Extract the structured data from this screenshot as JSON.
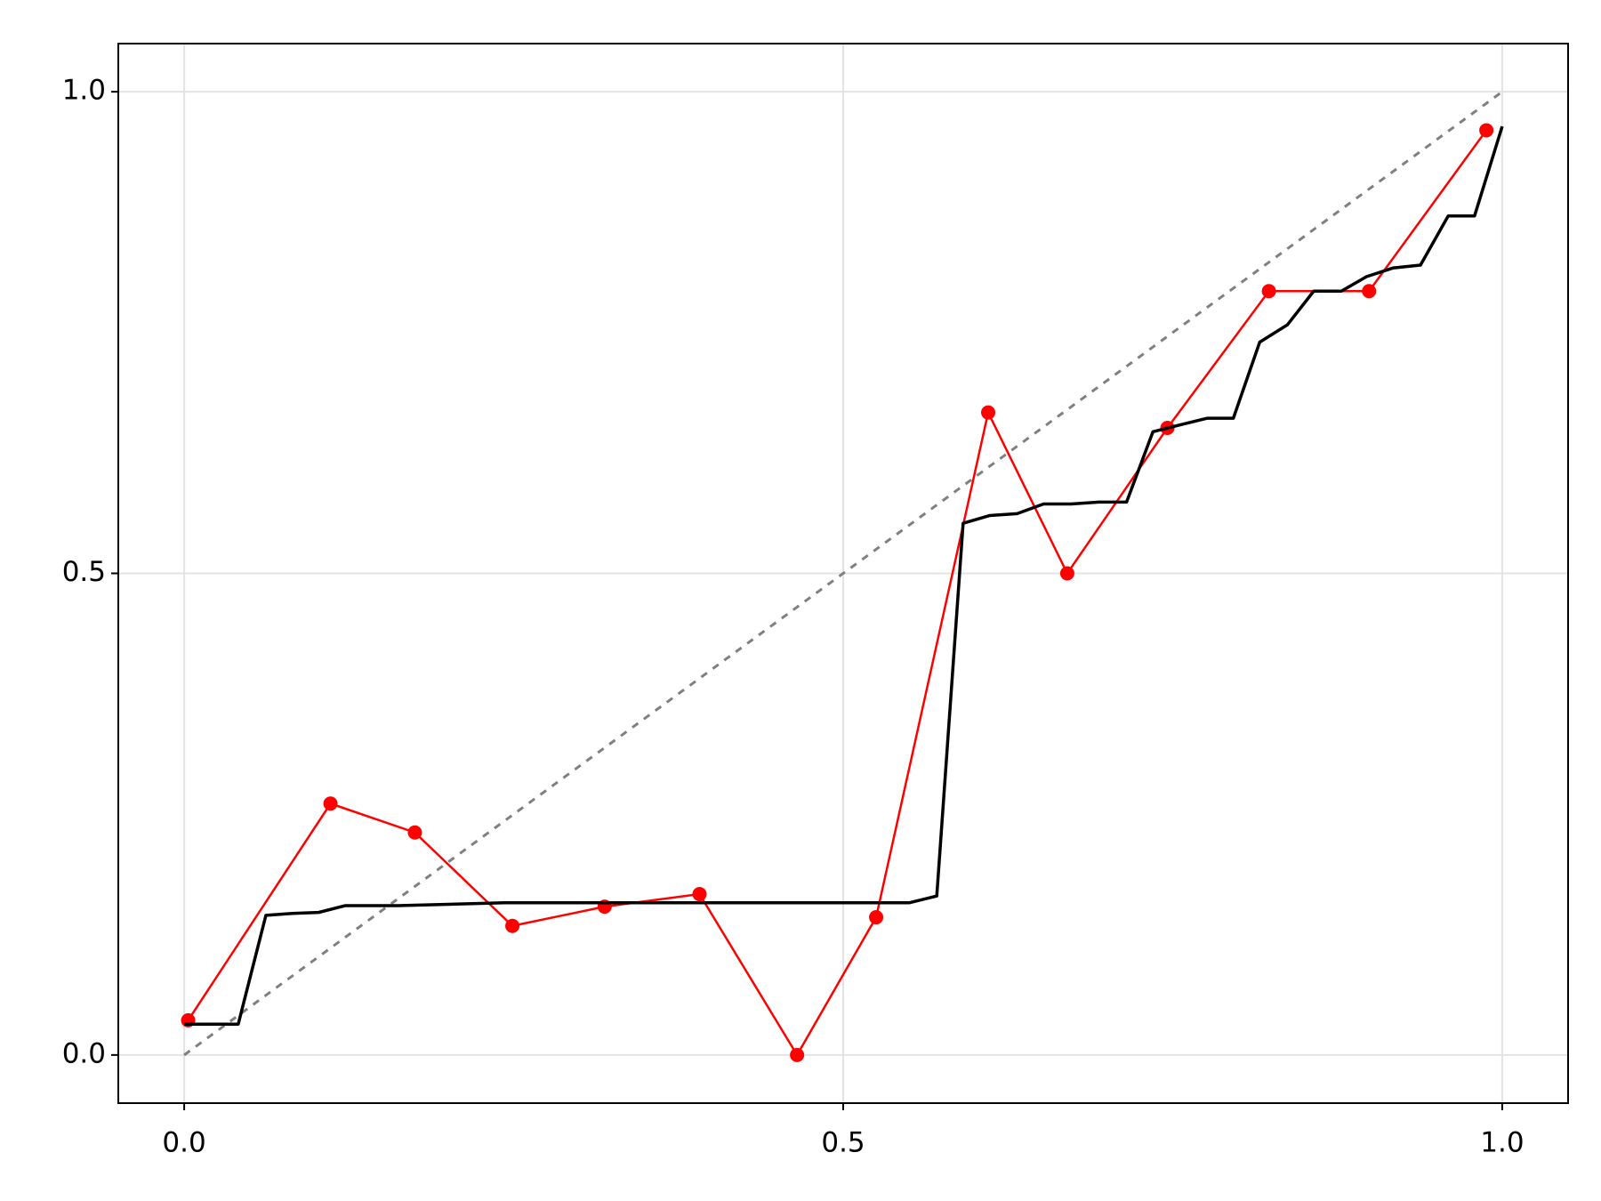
{
  "chart_data": {
    "type": "line",
    "xlim": [
      -0.05,
      1.05
    ],
    "ylim": [
      -0.05,
      1.05
    ],
    "xticks": [
      {
        "value": 0,
        "label": "0.0"
      },
      0.5,
      {
        "value": 1,
        "label": "1.0"
      }
    ],
    "yticks": [
      {
        "value": 0,
        "label": "0.0"
      },
      0.5,
      {
        "value": 1,
        "label": "1.0"
      }
    ],
    "grid": true,
    "series": [
      {
        "color": "#808080",
        "style": "dashed",
        "markers": false,
        "x": [
          0,
          1
        ],
        "values": [
          0,
          1
        ]
      },
      {
        "color": "#ff0000",
        "style": "solid",
        "markers": true,
        "x": [
          0.003,
          0.111,
          0.175,
          0.249,
          0.319,
          0.391,
          0.465,
          0.525,
          0.61,
          0.67,
          0.746,
          0.823,
          0.899,
          0.988
        ],
        "values": [
          0.036,
          0.261,
          0.231,
          0.134,
          0.154,
          0.167,
          0.0,
          0.143,
          0.667,
          0.5,
          0.651,
          0.793,
          0.793,
          0.96
        ]
      },
      {
        "color": "#000000",
        "style": "solid",
        "markers": false,
        "x": [
          0,
          0.041,
          0.062,
          0.082,
          0.102,
          0.122,
          0.162,
          0.243,
          0.55,
          0.571,
          0.591,
          0.611,
          0.632,
          0.652,
          0.673,
          0.694,
          0.715,
          0.735,
          0.755,
          0.776,
          0.796,
          0.816,
          0.837,
          0.857,
          0.878,
          0.897,
          0.917,
          0.938,
          0.959,
          0.979,
          1.0
        ],
        "values": [
          0.032,
          0.032,
          0.145,
          0.147,
          0.148,
          0.155,
          0.155,
          0.158,
          0.158,
          0.165,
          0.552,
          0.56,
          0.562,
          0.572,
          0.572,
          0.574,
          0.574,
          0.647,
          0.654,
          0.661,
          0.661,
          0.74,
          0.758,
          0.793,
          0.793,
          0.808,
          0.817,
          0.82,
          0.871,
          0.871,
          0.964
        ]
      }
    ]
  }
}
